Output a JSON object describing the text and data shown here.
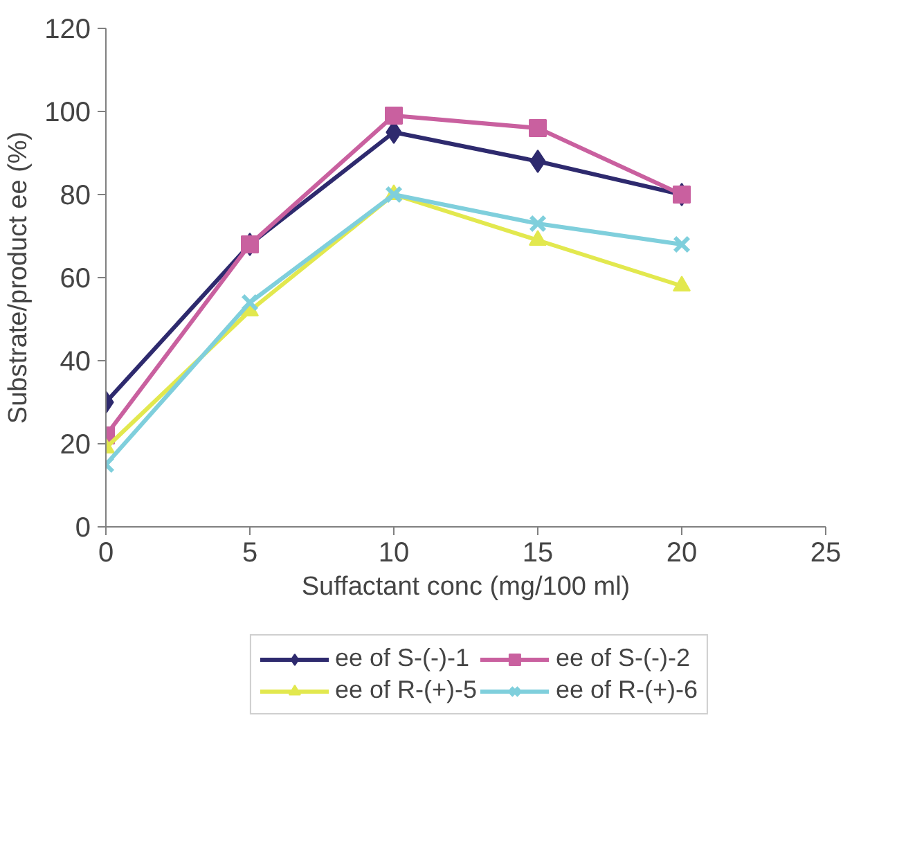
{
  "chart_data": {
    "type": "line",
    "xlabel": "Suffactant conc (mg/100 ml)",
    "ylabel": "Substrate/product ee (%)",
    "x": [
      0,
      5,
      10,
      15,
      20
    ],
    "series": [
      {
        "name": "ee of S-(-)-1",
        "color": "#2e2a6e",
        "marker": "diamond",
        "values": [
          30,
          68,
          95,
          88,
          80
        ]
      },
      {
        "name": "ee of S-(-)-2",
        "color": "#c9609f",
        "marker": "square",
        "values": [
          22,
          68,
          99,
          96,
          80
        ]
      },
      {
        "name": "ee of R-(+)-5",
        "color": "#e2e84e",
        "marker": "triangle",
        "values": [
          19,
          52,
          80,
          69,
          58
        ]
      },
      {
        "name": "ee of R-(+)-6",
        "color": "#7fcfdc",
        "marker": "cross",
        "values": [
          15,
          54,
          80,
          73,
          68
        ]
      }
    ],
    "xlim": [
      0,
      25
    ],
    "xticks": [
      0,
      5,
      10,
      15,
      20,
      25
    ],
    "ylim": [
      0,
      120
    ],
    "yticks": [
      0,
      20,
      40,
      60,
      80,
      100,
      120
    ],
    "grid": false,
    "legend": "bottom",
    "line_style": "solid"
  }
}
